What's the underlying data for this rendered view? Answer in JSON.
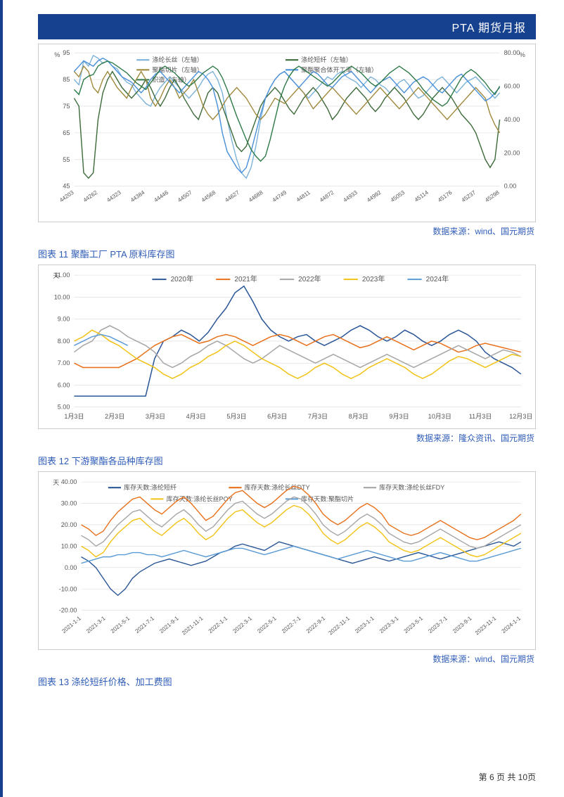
{
  "header": {
    "title": "PTA 期货月报"
  },
  "chart1": {
    "type": "line-dual-axis",
    "y_left": {
      "label": "%",
      "min": 45,
      "max": 95,
      "step": 10
    },
    "y_right": {
      "label": "%",
      "min": 0.0,
      "max": 80.0,
      "step": 20.0,
      "tick_labels": [
        "0.00",
        "20.00",
        "40.00",
        "60.00",
        "80.00"
      ]
    },
    "x_ticks": [
      "44203",
      "44262",
      "44323",
      "44384",
      "44446",
      "44507",
      "44568",
      "44627",
      "44688",
      "44749",
      "44811",
      "44872",
      "44933",
      "44992",
      "45053",
      "45114",
      "45176",
      "45237",
      "45298"
    ],
    "legend": [
      {
        "label": "涤纶长丝（左轴）",
        "color": "#7db3d9"
      },
      {
        "label": "涤纶短纤（左轴）",
        "color": "#3d6b3a"
      },
      {
        "label": "聚酯切片（左轴）",
        "color": "#a08a3f"
      },
      {
        "label": "聚酯聚合体开工率（左轴）",
        "color": "#4a90d9"
      },
      {
        "label": "织造（右轴）",
        "color": "#2f7a49"
      }
    ],
    "series": {
      "dl_changsi": [
        85,
        83,
        92,
        90,
        94,
        93,
        91,
        92,
        90,
        89,
        86,
        84,
        83,
        80,
        78,
        76,
        75,
        79,
        82,
        84,
        86,
        84,
        82,
        80,
        78,
        80,
        82,
        85,
        87,
        88,
        85,
        80,
        70,
        62,
        55,
        50,
        48,
        52,
        60,
        70,
        78,
        82,
        85,
        87,
        88,
        86,
        84,
        82,
        80,
        78,
        80,
        82,
        84,
        86,
        85,
        87,
        88,
        86,
        85,
        84,
        82,
        84,
        86,
        85,
        83,
        82,
        80,
        82,
        84,
        85,
        83,
        80,
        78,
        79,
        81,
        83,
        85,
        86,
        84,
        82,
        80,
        82,
        84,
        85,
        86,
        84,
        82,
        80,
        78,
        80
      ],
      "dl_duanxian": [
        78,
        75,
        50,
        48,
        50,
        70,
        80,
        85,
        88,
        85,
        82,
        80,
        78,
        80,
        82,
        85,
        82,
        78,
        75,
        78,
        82,
        85,
        82,
        78,
        75,
        72,
        70,
        75,
        80,
        82,
        80,
        75,
        70,
        65,
        60,
        58,
        60,
        65,
        70,
        75,
        78,
        80,
        82,
        80,
        77,
        74,
        72,
        75,
        78,
        80,
        82,
        80,
        77,
        74,
        70,
        72,
        75,
        78,
        80,
        82,
        80,
        78,
        75,
        73,
        75,
        78,
        80,
        82,
        80,
        78,
        75,
        72,
        70,
        72,
        75,
        78,
        80,
        82,
        80,
        78,
        75,
        72,
        70,
        68,
        65,
        60,
        55,
        52,
        55,
        70
      ],
      "juzhi_qiepian": [
        88,
        86,
        90,
        88,
        82,
        80,
        85,
        88,
        85,
        82,
        80,
        78,
        82,
        85,
        88,
        85,
        78,
        75,
        78,
        82,
        85,
        82,
        78,
        80,
        82,
        85,
        80,
        75,
        72,
        70,
        72,
        75,
        78,
        80,
        82,
        80,
        78,
        75,
        72,
        70,
        72,
        75,
        78,
        77,
        76,
        78,
        80,
        82,
        80,
        77,
        74,
        76,
        78,
        80,
        82,
        80,
        78,
        76,
        74,
        72,
        74,
        76,
        78,
        80,
        82,
        80,
        78,
        76,
        74,
        76,
        78,
        80,
        82,
        80,
        78,
        76,
        74,
        72,
        70,
        72,
        74,
        76,
        78,
        80,
        82,
        80,
        78,
        72,
        68,
        65
      ],
      "juhezhi": [
        88,
        90,
        92,
        91,
        90,
        92,
        93,
        92,
        90,
        88,
        86,
        85,
        84,
        82,
        80,
        82,
        85,
        87,
        88,
        86,
        84,
        82,
        80,
        82,
        84,
        86,
        88,
        87,
        85,
        82,
        75,
        65,
        58,
        55,
        52,
        50,
        52,
        58,
        65,
        72,
        78,
        82,
        85,
        87,
        88,
        86,
        84,
        82,
        84,
        86,
        88,
        87,
        85,
        83,
        82,
        84,
        86,
        87,
        88,
        86,
        84,
        82,
        80,
        82,
        84,
        85,
        86,
        84,
        82,
        80,
        82,
        84,
        85,
        86,
        85,
        83,
        81,
        80,
        82,
        84,
        86,
        87,
        85,
        83,
        81,
        79,
        77,
        78,
        80,
        82
      ],
      "zhizao": [
        58,
        55,
        64,
        66,
        67,
        72,
        74,
        75,
        74,
        72,
        70,
        68,
        65,
        62,
        60,
        58,
        62,
        66,
        70,
        72,
        70,
        68,
        65,
        62,
        60,
        62,
        65,
        68,
        70,
        72,
        70,
        65,
        58,
        50,
        42,
        35,
        28,
        22,
        18,
        15,
        18,
        28,
        40,
        52,
        60,
        66,
        70,
        72,
        70,
        68,
        66,
        64,
        62,
        60,
        62,
        65,
        68,
        70,
        72,
        70,
        68,
        65,
        62,
        60,
        62,
        65,
        68,
        70,
        72,
        70,
        68,
        65,
        62,
        58,
        55,
        52,
        50,
        48,
        50,
        55,
        60,
        65,
        68,
        70,
        68,
        65,
        62,
        58,
        55,
        60
      ]
    },
    "grid_color": "#d9d9d9",
    "background": "#ffffff",
    "source": "数据来源：wind、国元期货"
  },
  "chart2": {
    "title": "图表 11 聚酯工厂 PTA 原料库存图",
    "type": "line",
    "y": {
      "label": "天",
      "min": 5.0,
      "max": 11.0,
      "step": 1.0,
      "tick_labels": [
        "5.00",
        "6.00",
        "7.00",
        "8.00",
        "9.00",
        "10.00",
        "11.00"
      ]
    },
    "x_ticks": [
      "1月3日",
      "2月3日",
      "3月3日",
      "4月3日",
      "5月3日",
      "6月3日",
      "7月3日",
      "8月3日",
      "9月3日",
      "10月3日",
      "11月3日",
      "12月3日"
    ],
    "legend": [
      {
        "label": "2020年",
        "color": "#2b5797"
      },
      {
        "label": "2021年",
        "color": "#e8711c"
      },
      {
        "label": "2022年",
        "color": "#a6a6a6"
      },
      {
        "label": "2023年",
        "color": "#f2c316"
      },
      {
        "label": "2024年",
        "color": "#5b9bd5"
      }
    ],
    "series": {
      "2020": [
        5.5,
        5.5,
        5.5,
        5.5,
        5.5,
        5.5,
        5.5,
        5.5,
        5.5,
        7.2,
        8.0,
        8.2,
        8.5,
        8.3,
        8.0,
        8.4,
        9.0,
        9.5,
        10.2,
        10.5,
        9.8,
        9.0,
        8.5,
        8.2,
        8.0,
        8.2,
        8.3,
        8.0,
        7.8,
        8.0,
        8.2,
        8.5,
        8.7,
        8.5,
        8.2,
        8.0,
        8.2,
        8.5,
        8.3,
        8.0,
        7.8,
        8.0,
        8.3,
        8.5,
        8.3,
        8.0,
        7.5,
        7.2,
        7.0,
        6.8,
        6.5
      ],
      "2021": [
        7.0,
        6.8,
        6.8,
        6.8,
        6.8,
        6.8,
        7.0,
        7.2,
        7.5,
        7.8,
        8.0,
        8.2,
        8.3,
        8.1,
        7.9,
        8.0,
        8.2,
        8.3,
        8.2,
        8.0,
        7.8,
        8.0,
        8.2,
        8.3,
        8.2,
        8.0,
        7.8,
        8.0,
        8.2,
        8.3,
        8.1,
        7.9,
        7.7,
        7.8,
        8.0,
        8.2,
        8.0,
        7.8,
        7.6,
        7.8,
        8.0,
        7.9,
        7.7,
        7.5,
        7.6,
        7.8,
        7.9,
        7.8,
        7.7,
        7.6,
        7.5
      ],
      "2022": [
        7.5,
        7.8,
        8.0,
        8.5,
        8.7,
        8.5,
        8.2,
        8.0,
        7.8,
        7.5,
        7.0,
        6.8,
        7.0,
        7.3,
        7.5,
        7.8,
        8.0,
        7.8,
        7.5,
        7.2,
        7.0,
        7.2,
        7.5,
        7.8,
        7.6,
        7.4,
        7.2,
        7.0,
        7.2,
        7.4,
        7.2,
        7.0,
        6.8,
        7.0,
        7.2,
        7.4,
        7.2,
        7.0,
        6.8,
        7.0,
        7.2,
        7.4,
        7.6,
        7.8,
        7.6,
        7.4,
        7.2,
        7.4,
        7.6,
        7.5,
        7.3
      ],
      "2023": [
        8.0,
        8.2,
        8.5,
        8.3,
        8.0,
        7.8,
        7.5,
        7.2,
        7.0,
        6.8,
        6.5,
        6.3,
        6.5,
        6.8,
        7.0,
        7.3,
        7.5,
        7.8,
        8.0,
        7.8,
        7.5,
        7.2,
        7.0,
        6.8,
        6.5,
        6.3,
        6.5,
        6.8,
        7.0,
        6.8,
        6.5,
        6.3,
        6.5,
        6.8,
        7.0,
        7.2,
        7.0,
        6.8,
        6.5,
        6.3,
        6.5,
        6.8,
        7.1,
        7.3,
        7.2,
        7.0,
        6.8,
        7.0,
        7.2,
        7.4,
        7.3
      ],
      "2024": [
        7.8,
        8.0,
        8.2,
        8.3,
        8.2,
        8.0,
        7.8
      ]
    },
    "grid_color": "#d9d9d9",
    "source": "数据来源：隆众资讯、国元期货"
  },
  "chart3": {
    "title": "图表 12 下游聚酯各品种库存图",
    "type": "line",
    "y": {
      "label": "天",
      "min": -20.0,
      "max": 40.0,
      "step": 10.0,
      "tick_labels": [
        "-20.00",
        "-10.00",
        "0.00",
        "10.00",
        "20.00",
        "30.00",
        "40.00"
      ]
    },
    "x_ticks": [
      "2021-1-1",
      "2021-3-1",
      "2021-5-1",
      "2021-7-1",
      "2021-9-1",
      "2021-11-1",
      "2022-1-1",
      "2022-3-1",
      "2022-5-1",
      "2022-7-1",
      "2022-9-1",
      "2022-11-1",
      "2023-1-1",
      "2023-3-1",
      "2023-5-1",
      "2023-7-1",
      "2023-9-1",
      "2023-11-1",
      "2024-1-1"
    ],
    "legend": [
      {
        "label": "库存天数:涤纶短纤",
        "color": "#2b5797"
      },
      {
        "label": "库存天数:涤纶长丝DTY",
        "color": "#e8711c"
      },
      {
        "label": "库存天数:涤纶长丝FDY",
        "color": "#a6a6a6"
      },
      {
        "label": "库存天数:涤纶长丝POY",
        "color": "#f2c316"
      },
      {
        "label": "库存天数:聚酯切片",
        "color": "#5b9bd5"
      }
    ],
    "series": {
      "duanxian": [
        5,
        3,
        0,
        -5,
        -10,
        -13,
        -10,
        -5,
        -2,
        0,
        2,
        3,
        4,
        3,
        2,
        1,
        2,
        3,
        5,
        7,
        8,
        10,
        11,
        10,
        9,
        8,
        10,
        12,
        11,
        10,
        9,
        8,
        7,
        6,
        5,
        4,
        3,
        2,
        3,
        4,
        5,
        4,
        3,
        4,
        5,
        6,
        7,
        6,
        5,
        4,
        5,
        6,
        7,
        8,
        9,
        10,
        11,
        12,
        11,
        10,
        12
      ],
      "dty": [
        20,
        18,
        15,
        17,
        22,
        26,
        29,
        32,
        33,
        30,
        27,
        25,
        28,
        31,
        33,
        30,
        26,
        22,
        24,
        28,
        32,
        35,
        36,
        33,
        30,
        28,
        30,
        33,
        36,
        38,
        37,
        34,
        30,
        25,
        22,
        20,
        22,
        25,
        28,
        30,
        28,
        25,
        20,
        18,
        16,
        15,
        16,
        18,
        20,
        22,
        20,
        18,
        16,
        14,
        13,
        14,
        16,
        18,
        20,
        22,
        25
      ],
      "fdy": [
        15,
        13,
        10,
        12,
        16,
        20,
        23,
        26,
        27,
        24,
        21,
        19,
        22,
        25,
        27,
        24,
        20,
        17,
        19,
        23,
        27,
        30,
        31,
        28,
        25,
        23,
        25,
        28,
        31,
        33,
        32,
        29,
        25,
        20,
        17,
        15,
        17,
        20,
        23,
        25,
        23,
        20,
        16,
        14,
        12,
        11,
        12,
        14,
        16,
        18,
        16,
        14,
        12,
        10,
        9,
        10,
        12,
        14,
        16,
        18,
        20
      ],
      "poy": [
        10,
        8,
        5,
        7,
        12,
        16,
        19,
        22,
        23,
        20,
        17,
        15,
        18,
        21,
        23,
        20,
        16,
        13,
        15,
        19,
        23,
        26,
        27,
        24,
        21,
        19,
        21,
        24,
        27,
        29,
        28,
        25,
        21,
        16,
        13,
        11,
        13,
        16,
        19,
        21,
        19,
        16,
        12,
        10,
        8,
        7,
        8,
        10,
        12,
        14,
        12,
        10,
        8,
        6,
        5,
        6,
        8,
        10,
        12,
        14,
        16
      ],
      "qiepian": [
        2,
        3,
        4,
        5,
        5,
        6,
        6,
        7,
        7,
        6,
        6,
        5,
        6,
        7,
        8,
        7,
        6,
        5,
        6,
        7,
        8,
        9,
        9,
        8,
        7,
        6,
        7,
        8,
        9,
        10,
        9,
        8,
        7,
        6,
        5,
        4,
        5,
        6,
        7,
        8,
        7,
        6,
        5,
        4,
        3,
        3,
        4,
        5,
        6,
        7,
        6,
        5,
        4,
        3,
        3,
        4,
        5,
        6,
        7,
        8,
        9
      ]
    },
    "grid_color": "#d9d9d9",
    "source": "数据来源：wind、国元期货"
  },
  "chart4_title": "图表 13 涤纶短纤价格、加工费图",
  "footer": {
    "page_text": "第 6 页 共 10页"
  }
}
